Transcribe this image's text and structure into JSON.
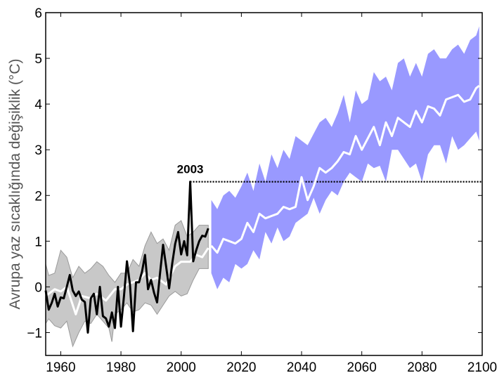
{
  "chart_data": {
    "type": "line",
    "title": "",
    "xlabel": "",
    "ylabel": "Avrupa yaz sıcaklığında değişiklik (°C)",
    "xlim": [
      1955,
      2100
    ],
    "ylim": [
      -1.5,
      6
    ],
    "xticks": [
      "1960",
      "1980",
      "2000",
      "2020",
      "2040",
      "2060",
      "2080",
      "2100"
    ],
    "yticks": [
      "−1",
      "0",
      "1",
      "2",
      "3",
      "4",
      "5",
      "6"
    ],
    "grid": false,
    "colors": {
      "observed": "#000000",
      "model_mean": "#ffffff",
      "historical_band": "#c8c8c8",
      "historical_band_edge": "#9a9a9a",
      "projection_band": "#9999ff"
    },
    "annotation": {
      "label": "2003",
      "x": 2003,
      "y": 2.3,
      "threshold_line_to": 2100
    },
    "series": [
      {
        "name": "observed",
        "x": [
          1955,
          1956,
          1957,
          1958,
          1959,
          1960,
          1961,
          1962,
          1963,
          1964,
          1965,
          1966,
          1967,
          1968,
          1969,
          1970,
          1971,
          1972,
          1973,
          1974,
          1975,
          1976,
          1977,
          1978,
          1979,
          1980,
          1981,
          1982,
          1983,
          1984,
          1985,
          1986,
          1987,
          1988,
          1989,
          1990,
          1991,
          1992,
          1993,
          1994,
          1995,
          1996,
          1997,
          1998,
          1999,
          2000,
          2001,
          2002,
          2003,
          2004,
          2005,
          2006,
          2007,
          2008,
          2009
        ],
        "values": [
          -0.08,
          -0.5,
          -0.35,
          -0.15,
          -0.43,
          -0.23,
          -0.25,
          0.0,
          0.26,
          -0.08,
          -0.2,
          -0.1,
          -0.28,
          -0.33,
          -1.0,
          -0.25,
          -0.15,
          -0.6,
          0.0,
          -0.64,
          -0.69,
          -0.87,
          -0.56,
          -0.9,
          0.0,
          -0.87,
          -0.2,
          0.56,
          0.05,
          -0.97,
          0.1,
          0.1,
          0.33,
          0.7,
          -0.05,
          0.15,
          -0.13,
          -0.34,
          0.3,
          0.92,
          0.45,
          -0.03,
          0.5,
          0.94,
          1.2,
          0.71,
          1.0,
          0.69,
          2.3,
          0.56,
          0.8,
          1.0,
          1.12,
          1.1,
          1.28
        ]
      },
      {
        "name": "historical_model_mean",
        "x": [
          1955,
          1958,
          1960,
          1962,
          1963,
          1965,
          1967,
          1970,
          1972,
          1975,
          1978,
          1980,
          1982,
          1984,
          1986,
          1988,
          1990,
          1992,
          1995,
          1998,
          2000,
          2003,
          2005,
          2007,
          2009
        ],
        "values": [
          -0.2,
          -0.05,
          -0.1,
          0.0,
          -0.2,
          -0.6,
          -0.2,
          -0.25,
          -0.15,
          -0.3,
          -0.05,
          -0.05,
          0.05,
          0.1,
          0.15,
          0.3,
          0.15,
          0.2,
          0.05,
          0.45,
          0.55,
          0.55,
          0.7,
          0.65,
          0.85
        ]
      },
      {
        "name": "historical_band_upper",
        "x": [
          1955,
          1956,
          1958,
          1960,
          1962,
          1964,
          1966,
          1968,
          1970,
          1972,
          1974,
          1976,
          1978,
          1980,
          1982,
          1984,
          1986,
          1988,
          1990,
          1992,
          1994,
          1996,
          1998,
          2000,
          2002,
          2004,
          2006,
          2009
        ],
        "values": [
          0.5,
          0.25,
          0.3,
          0.8,
          0.65,
          0.2,
          0.45,
          0.3,
          0.4,
          0.55,
          0.45,
          0.25,
          0.1,
          0.3,
          0.3,
          0.6,
          0.45,
          0.9,
          1.2,
          0.95,
          1.05,
          0.8,
          1.35,
          1.45,
          1.1,
          1.2,
          1.35,
          1.35
        ]
      },
      {
        "name": "historical_band_lower",
        "x": [
          1955,
          1956,
          1958,
          1960,
          1962,
          1964,
          1966,
          1968,
          1970,
          1972,
          1974,
          1976,
          1977,
          1978,
          1980,
          1982,
          1984,
          1986,
          1988,
          1990,
          1992,
          1994,
          1996,
          1998,
          2000,
          2002,
          2004,
          2006,
          2009
        ],
        "values": [
          -0.8,
          -0.7,
          -0.85,
          -0.9,
          -0.75,
          -1.3,
          -1.0,
          -0.75,
          -0.8,
          -0.6,
          -0.75,
          -0.9,
          -1.2,
          -0.6,
          -0.5,
          -0.35,
          -0.55,
          -0.5,
          -0.35,
          -0.4,
          -0.6,
          -0.4,
          -0.2,
          -0.1,
          -0.2,
          -0.15,
          0.15,
          0.4,
          0.4
        ]
      },
      {
        "name": "projection_mean",
        "x": [
          2010,
          2012,
          2014,
          2016,
          2018,
          2020,
          2022,
          2024,
          2026,
          2028,
          2030,
          2032,
          2034,
          2036,
          2038,
          2040,
          2042,
          2044,
          2046,
          2048,
          2050,
          2052,
          2054,
          2056,
          2058,
          2060,
          2062,
          2064,
          2066,
          2068,
          2070,
          2072,
          2074,
          2076,
          2078,
          2080,
          2082,
          2084,
          2086,
          2088,
          2090,
          2092,
          2094,
          2096,
          2098,
          2099
        ],
        "values": [
          0.9,
          0.75,
          1.05,
          1.0,
          0.95,
          1.05,
          1.4,
          1.2,
          1.6,
          1.5,
          1.55,
          1.6,
          1.75,
          1.7,
          1.75,
          2.4,
          1.9,
          2.2,
          2.6,
          2.5,
          2.6,
          2.75,
          2.95,
          2.9,
          3.3,
          3.0,
          3.25,
          3.5,
          3.1,
          3.6,
          3.3,
          3.7,
          3.6,
          3.5,
          3.85,
          3.6,
          3.95,
          3.9,
          3.75,
          4.1,
          4.15,
          4.2,
          4.05,
          4.1,
          4.35,
          4.4
        ]
      },
      {
        "name": "projection_band_upper",
        "x": [
          2010,
          2012,
          2014,
          2016,
          2018,
          2020,
          2022,
          2024,
          2026,
          2028,
          2030,
          2032,
          2034,
          2036,
          2038,
          2040,
          2042,
          2044,
          2046,
          2048,
          2050,
          2052,
          2054,
          2056,
          2058,
          2060,
          2062,
          2064,
          2066,
          2068,
          2070,
          2072,
          2074,
          2076,
          2078,
          2080,
          2082,
          2084,
          2086,
          2088,
          2090,
          2092,
          2094,
          2096,
          2098,
          2099
        ],
        "values": [
          1.9,
          1.7,
          2.0,
          2.1,
          1.95,
          2.2,
          2.5,
          2.1,
          2.7,
          2.3,
          2.9,
          2.6,
          3.0,
          2.8,
          3.3,
          3.2,
          3.1,
          3.35,
          3.6,
          3.7,
          3.5,
          3.8,
          4.2,
          3.6,
          4.3,
          4.0,
          4.1,
          4.7,
          4.5,
          4.6,
          4.3,
          4.9,
          5.0,
          4.6,
          4.9,
          4.6,
          5.1,
          5.2,
          5.0,
          5.0,
          5.2,
          5.3,
          5.1,
          5.4,
          5.5,
          5.7
        ]
      },
      {
        "name": "projection_band_lower",
        "x": [
          2010,
          2012,
          2014,
          2016,
          2018,
          2020,
          2022,
          2024,
          2026,
          2028,
          2030,
          2032,
          2034,
          2036,
          2038,
          2040,
          2042,
          2044,
          2046,
          2048,
          2050,
          2052,
          2054,
          2056,
          2058,
          2060,
          2062,
          2064,
          2066,
          2068,
          2070,
          2072,
          2074,
          2076,
          2078,
          2080,
          2082,
          2084,
          2086,
          2088,
          2090,
          2092,
          2094,
          2096,
          2098,
          2099
        ],
        "values": [
          0.3,
          -0.05,
          0.2,
          0.1,
          0.5,
          0.4,
          0.5,
          0.8,
          0.6,
          1.2,
          0.95,
          1.3,
          1.0,
          1.1,
          1.4,
          1.5,
          1.6,
          1.95,
          1.6,
          1.9,
          2.1,
          2.0,
          2.3,
          2.5,
          2.4,
          2.3,
          2.7,
          2.6,
          2.65,
          2.3,
          3.0,
          3.0,
          2.8,
          2.6,
          2.7,
          2.3,
          2.9,
          3.1,
          3.1,
          2.7,
          3.3,
          3.0,
          3.1,
          3.25,
          3.4,
          3.2
        ]
      }
    ]
  }
}
